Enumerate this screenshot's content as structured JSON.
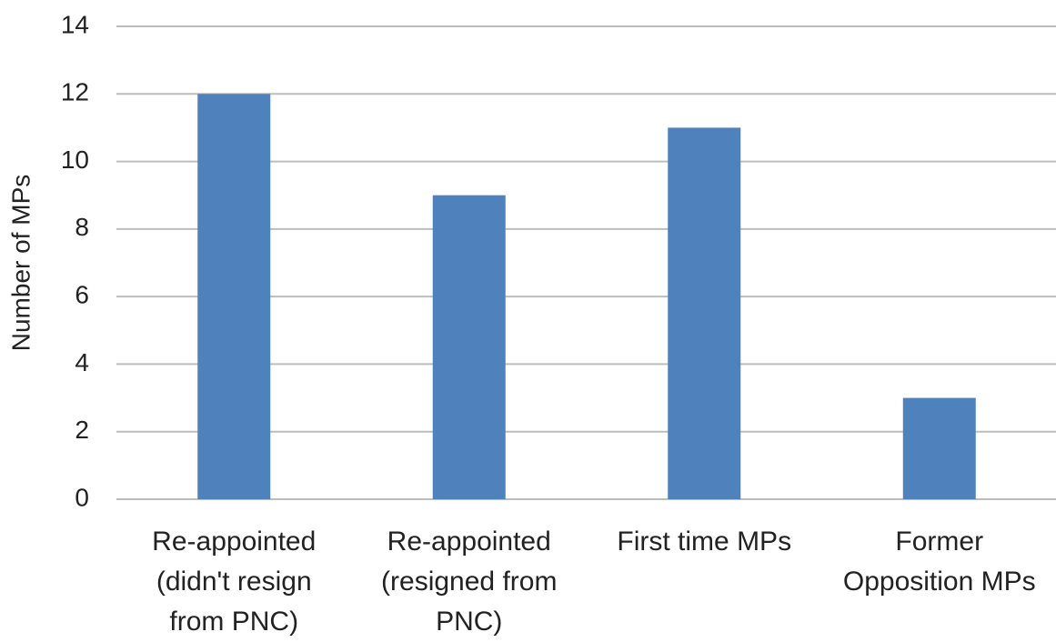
{
  "chart_data": {
    "type": "bar",
    "y_label": "Number of MPs",
    "categories": [
      "Re-appointed (didn't resign from PNC)",
      "Re-appointed (resigned from PNC)",
      "First time MPs",
      "Former Opposition MPs"
    ],
    "values": [
      12,
      9,
      11,
      3
    ],
    "color": "#4f81bd",
    "ylim": [
      0,
      14
    ],
    "yticks": [
      0,
      2,
      4,
      6,
      8,
      10,
      12,
      14
    ],
    "grid": true
  }
}
